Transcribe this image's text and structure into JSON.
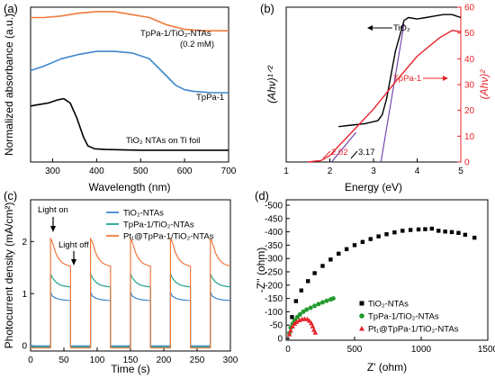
{
  "colors": {
    "orange": "#f07a3c",
    "blue": "#3d86cc",
    "black": "#000000",
    "red": "#e8232a",
    "purple": "#6a3da8",
    "teal": "#1ea58f",
    "green": "#239a2f"
  },
  "chart_data": [
    {
      "panel": "(a)",
      "type": "line",
      "xlabel": "Wavelength (nm)",
      "ylabel": "Normalized absorbance (a.u.)",
      "xlim": [
        250,
        700
      ],
      "ylim": [
        0,
        1.05
      ],
      "xticks": [
        "300",
        "400",
        "500",
        "600",
        "700"
      ],
      "series": [
        {
          "name": "TpPa-1/TiO2-NTAs (0.2 mM)",
          "color_key": "orange",
          "x": [
            250,
            280,
            320,
            360,
            400,
            440,
            480,
            520,
            560,
            600,
            640,
            680,
            700
          ],
          "y": [
            0.98,
            0.98,
            0.99,
            1.01,
            1.02,
            1.02,
            1.0,
            0.98,
            0.93,
            0.9,
            0.89,
            0.89,
            0.89
          ]
        },
        {
          "name": "TpPa-1",
          "color_key": "blue",
          "x": [
            250,
            280,
            320,
            360,
            400,
            440,
            480,
            520,
            560,
            580,
            600,
            620,
            660,
            700
          ],
          "y": [
            0.62,
            0.65,
            0.7,
            0.73,
            0.75,
            0.75,
            0.74,
            0.7,
            0.58,
            0.52,
            0.49,
            0.48,
            0.47,
            0.47
          ]
        },
        {
          "name": "TiO2 NTAs on Ti foil",
          "color_key": "black",
          "x": [
            250,
            270,
            290,
            310,
            325,
            340,
            355,
            370,
            380,
            395,
            420,
            500,
            600,
            700
          ],
          "y": [
            0.38,
            0.39,
            0.4,
            0.42,
            0.43,
            0.4,
            0.3,
            0.17,
            0.11,
            0.09,
            0.085,
            0.08,
            0.08,
            0.08
          ]
        }
      ],
      "labels": [
        "TpPa-1/TiO₂-NTAs",
        "(0.2 mM)",
        "TpPa-1",
        "TiO₂ NTAs on Ti foil"
      ]
    },
    {
      "panel": "(b)",
      "type": "line",
      "xlabel": "Energy (eV)",
      "ylabel_left": "(Ahν)¹ᐟ²",
      "ylabel_right": "(Ahν)²",
      "xlim": [
        1,
        5
      ],
      "ylim_right": [
        0,
        60
      ],
      "xticks": [
        "1",
        "2",
        "3",
        "4",
        "5"
      ],
      "yticks_right": [
        "0",
        "10",
        "20",
        "30",
        "40",
        "50",
        "60"
      ],
      "series": [
        {
          "name": "TiO2",
          "axis": "left",
          "color_key": "black",
          "x": [
            2.2,
            2.5,
            2.8,
            3.1,
            3.2,
            3.3,
            3.5,
            3.7,
            3.8,
            4.0,
            4.2,
            4.4,
            4.6,
            4.8,
            5.0
          ],
          "y": [
            0.24,
            0.25,
            0.26,
            0.28,
            0.32,
            0.43,
            0.75,
            0.96,
            0.98,
            0.97,
            0.98,
            0.99,
            1.0,
            1.0,
            0.98
          ]
        },
        {
          "name": "TpPa-1",
          "axis": "right",
          "color_key": "red",
          "x": [
            1.5,
            1.8,
            2.0,
            2.2,
            2.5,
            3.0,
            3.5,
            4.0,
            4.5,
            4.8,
            5.0
          ],
          "y": [
            0,
            0.6,
            2.5,
            6.2,
            11.5,
            20.5,
            31,
            41,
            48,
            51,
            50.5
          ]
        }
      ],
      "tangent_lines": [
        {
          "color_key": "purple",
          "x": [
            2.04,
            2.6
          ],
          "y_right": [
            0,
            11.5
          ]
        },
        {
          "color_key": "purple",
          "x": [
            3.17,
            3.7
          ],
          "y_right": [
            0,
            53.5
          ]
        }
      ],
      "annotations": [
        "2.02",
        "3.17"
      ],
      "labels": [
        "TiO₂",
        "TpPa-1"
      ]
    },
    {
      "panel": "(c)",
      "type": "line",
      "xlabel": "Time (s)",
      "ylabel": "Photocurrent density (mA/cm²)",
      "xlim": [
        0,
        300
      ],
      "ylim": [
        -0.1,
        2.8
      ],
      "xticks": [
        "0",
        "50",
        "100",
        "150",
        "200",
        "250",
        "300"
      ],
      "yticks": [
        "0",
        "1",
        "2"
      ],
      "light_on_intervals": [
        [
          30,
          60
        ],
        [
          90,
          120
        ],
        [
          150,
          180
        ],
        [
          210,
          240
        ],
        [
          270,
          300
        ]
      ],
      "series": [
        {
          "name": "TiO₂-NTAs",
          "color_key": "blue",
          "on_start": 0.95,
          "on_end": 0.87,
          "off": 0.0
        },
        {
          "name": "TpPa-1/TiO₂-NTAs",
          "color_key": "teal",
          "on_start": 1.3,
          "on_end": 1.13,
          "off": -0.02
        },
        {
          "name": "Pt₁@TpPa-1/TiO₂-NTAs",
          "color_key": "orange",
          "on_start": 1.98,
          "on_end": 1.53,
          "off": -0.04
        }
      ],
      "annotations": [
        "Light on",
        "Light off"
      ]
    },
    {
      "panel": "(d)",
      "type": "scatter",
      "xlabel": "Z' (ohm)",
      "ylabel": "-Z'' (ohm)",
      "xlim": [
        0,
        1500
      ],
      "ylim": [
        0,
        -500
      ],
      "xticks": [
        "0",
        "500",
        "1000",
        "1500"
      ],
      "yticks": [
        "0",
        "-50",
        "-100",
        "-150",
        "-200",
        "-250",
        "-300",
        "-350",
        "-400",
        "-450",
        "-500"
      ],
      "series": [
        {
          "name": "TiO₂-NTAs",
          "color_key": "black",
          "marker": "square",
          "x": [
            30,
            60,
            100,
            150,
            200,
            260,
            320,
            380,
            440,
            500,
            560,
            620,
            680,
            740,
            800,
            860,
            920,
            980,
            1030,
            1080,
            1130,
            1180,
            1230,
            1280,
            1330,
            1400
          ],
          "y": [
            -80,
            -140,
            -180,
            -215,
            -245,
            -272,
            -296,
            -318,
            -335,
            -350,
            -362,
            -373,
            -383,
            -391,
            -398,
            -404,
            -407,
            -409,
            -410,
            -412,
            -404,
            -401,
            -399,
            -396,
            -389,
            -378
          ]
        },
        {
          "name": "TpPa-1/TiO₂-NTAs",
          "color_key": "green",
          "marker": "circle",
          "x": [
            10,
            20,
            35,
            50,
            70,
            90,
            115,
            140,
            170,
            200,
            230,
            260,
            290,
            320,
            340
          ],
          "y": [
            -20,
            -40,
            -55,
            -68,
            -80,
            -90,
            -100,
            -108,
            -115,
            -122,
            -129,
            -135,
            -141,
            -146,
            -150
          ]
        },
        {
          "name": "Pt₁@TpPa-1/TiO₂-NTAs",
          "color_key": "red",
          "marker": "triangle",
          "x": [
            10,
            20,
            35,
            50,
            65,
            85,
            105,
            125,
            145,
            160,
            175,
            185,
            195,
            205
          ],
          "y": [
            -15,
            -30,
            -45,
            -55,
            -62,
            -68,
            -72,
            -73,
            -72,
            -66,
            -57,
            -45,
            -32,
            -22
          ]
        }
      ]
    }
  ]
}
